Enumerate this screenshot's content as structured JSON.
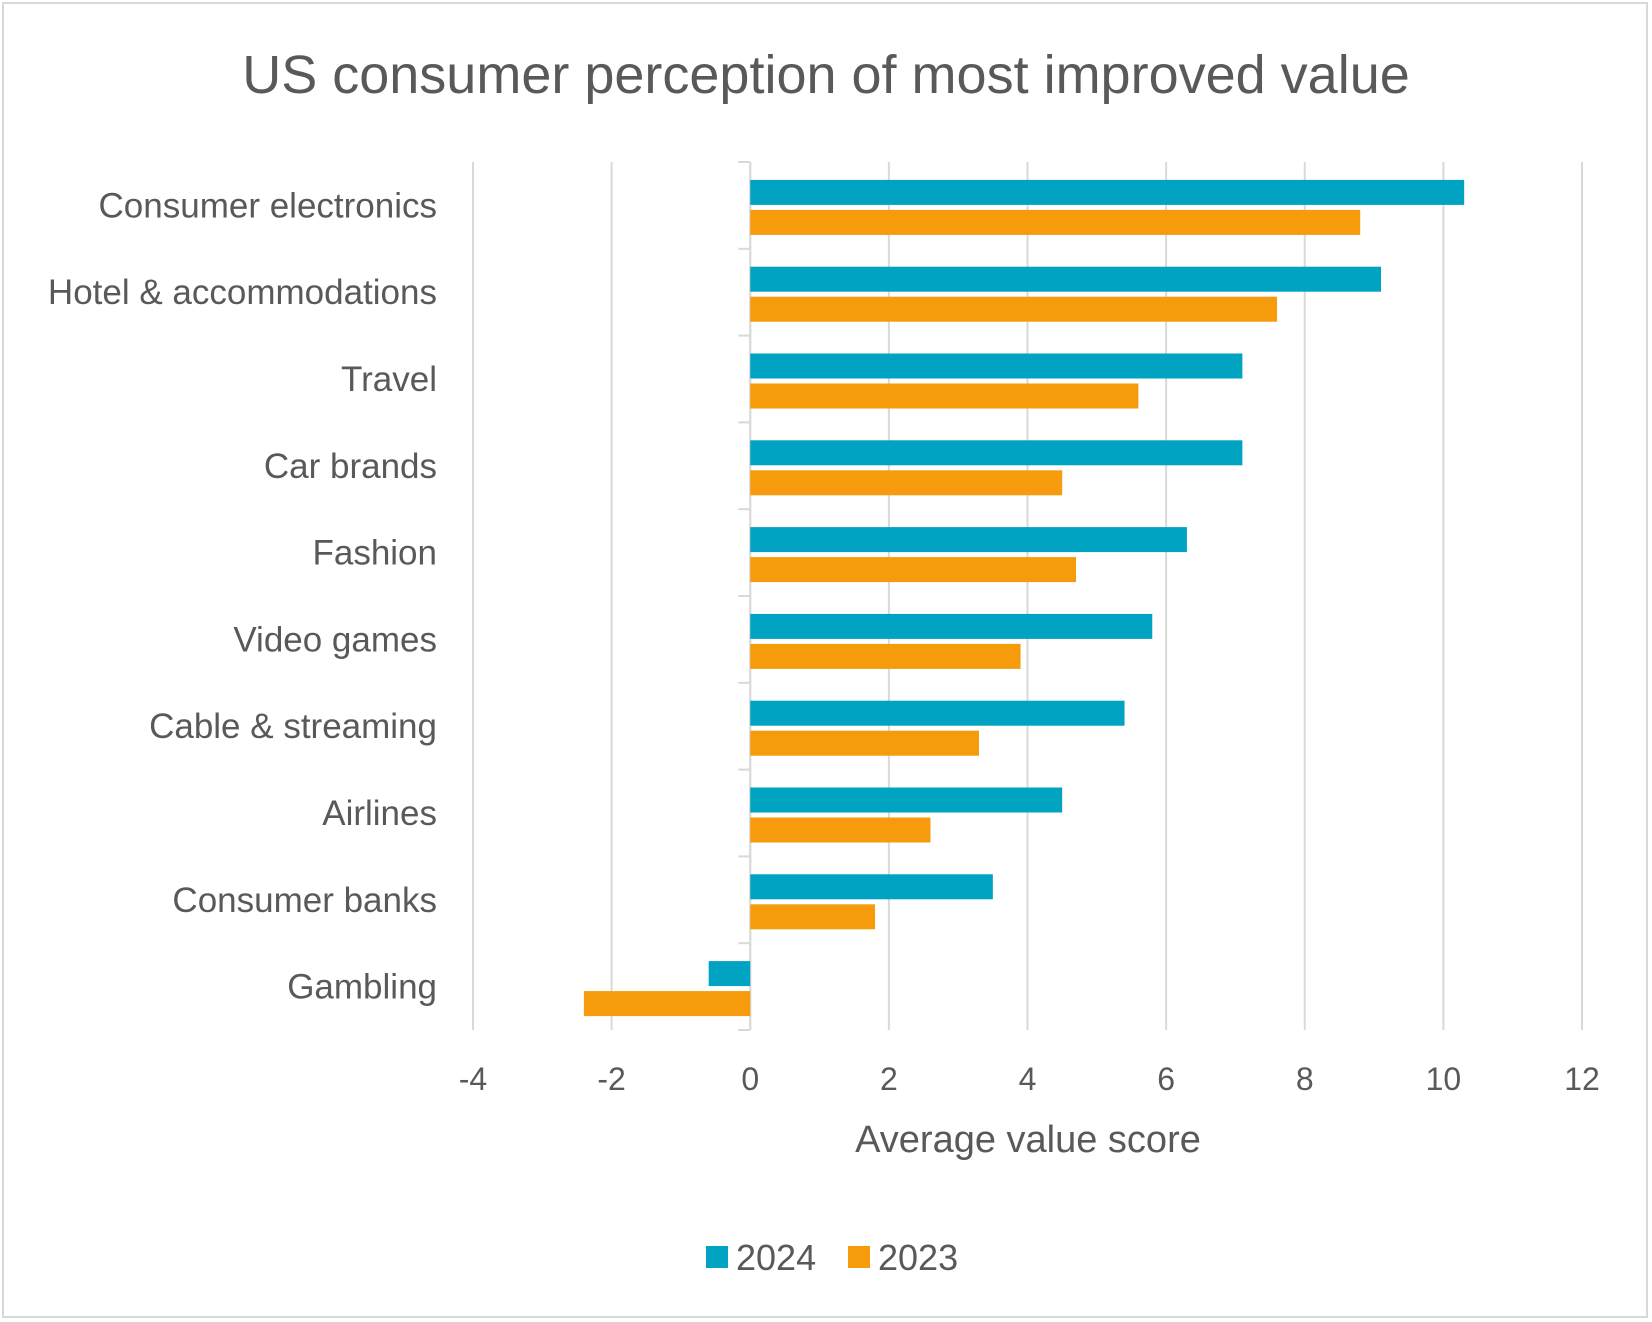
{
  "chart_data": {
    "type": "bar",
    "orientation": "horizontal",
    "title": "US consumer perception of most improved value",
    "xlabel": "Average value score",
    "ylabel": "",
    "xlim": [
      -4,
      12
    ],
    "xticks": [
      "-4",
      "-2",
      "0",
      "2",
      "4",
      "6",
      "8",
      "10",
      "12"
    ],
    "grid": "vertical",
    "legend_position": "bottom",
    "categories": [
      "Consumer electronics",
      "Hotel & accommodations",
      "Travel",
      "Car brands",
      "Fashion",
      "Video games",
      "Cable & streaming",
      "Airlines",
      "Consumer banks",
      "Gambling"
    ],
    "series": [
      {
        "name": "2024",
        "color": "#00A3C1",
        "values": [
          10.3,
          9.1,
          7.1,
          7.1,
          6.3,
          5.8,
          5.4,
          4.5,
          3.5,
          -0.6
        ]
      },
      {
        "name": "2023",
        "color": "#F59B0C",
        "values": [
          8.8,
          7.6,
          5.6,
          4.5,
          4.7,
          3.9,
          3.3,
          2.6,
          1.8,
          -2.4
        ]
      }
    ]
  }
}
